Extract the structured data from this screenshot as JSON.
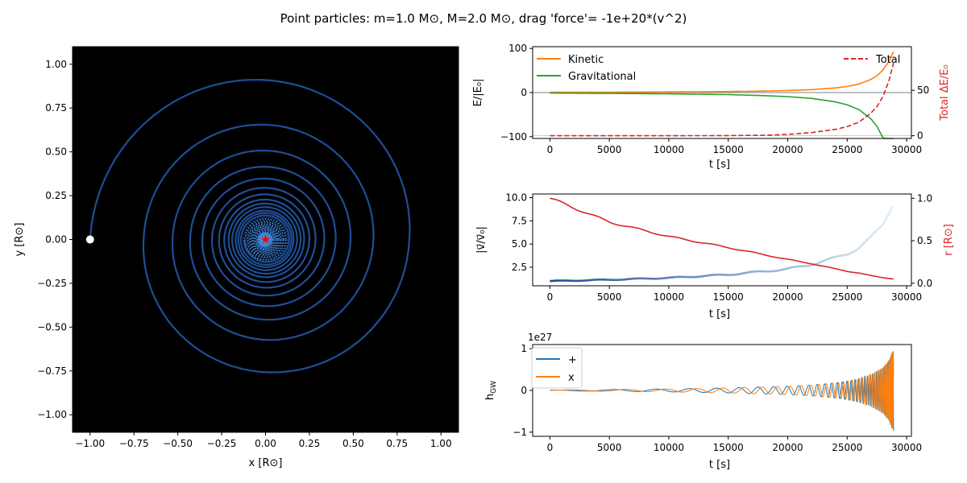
{
  "suptitle": "Point particles: m=1.0 M⊙, M=2.0 M⊙, drag 'force'= -1e+20*(v^2)",
  "colors": {
    "orbit": "#1f4e96",
    "orbit_inner": "#4a90d9",
    "kinetic": "#ff7f0e",
    "gravitational": "#2ca02c",
    "total": "#d62728",
    "radius": "#d62728",
    "plus": "#1f77b4",
    "cross": "#ff7f0e",
    "star": "#ff0000",
    "particle": "#ffffff",
    "background": "#000000"
  },
  "chart_data": [
    {
      "id": "orbit",
      "type": "line",
      "xlabel": "x [R⊙]",
      "ylabel": "y [R⊙]",
      "xlim": [
        -1.1,
        1.1
      ],
      "ylim": [
        -1.1,
        1.1
      ],
      "xticks": [
        "−1.00",
        "−0.75",
        "−0.50",
        "−0.25",
        "0.00",
        "0.25",
        "0.50",
        "0.75",
        "1.00"
      ],
      "yticks": [
        "−1.00",
        "−0.75",
        "−0.50",
        "−0.25",
        "0.00",
        "0.25",
        "0.50",
        "0.75",
        "1.00"
      ],
      "xtick_values": [
        -1,
        -0.75,
        -0.5,
        -0.25,
        0,
        0.25,
        0.5,
        0.75,
        1
      ],
      "ytick_values": [
        -1,
        -0.75,
        -0.5,
        -0.25,
        0,
        0.25,
        0.5,
        0.75,
        1
      ],
      "spiral_left_edges": [
        -1.0,
        -0.695,
        -0.53,
        -0.43,
        -0.36,
        -0.305,
        -0.265,
        -0.235,
        -0.21,
        -0.19,
        -0.17,
        -0.155,
        -0.14
      ],
      "spiral_right_edges": [
        0.82,
        0.615,
        0.485,
        0.4,
        0.335,
        0.285,
        0.25,
        0.22,
        0.2,
        0.18,
        0.16,
        0.148,
        0.135
      ],
      "particle_start": [
        -1.0,
        0.0
      ],
      "central_mass": [
        0.0,
        0.0
      ]
    },
    {
      "id": "energy",
      "type": "line",
      "xlabel": "t [s]",
      "ylabel": "E/|E₀|",
      "ylabel_right": "Total ΔE/E₀",
      "xlim": [
        -1450,
        30400
      ],
      "ylim": [
        -104,
        104
      ],
      "ylim_right": [
        -3,
        98
      ],
      "xticks": [
        "0",
        "5000",
        "10000",
        "15000",
        "20000",
        "25000",
        "30000"
      ],
      "xtick_values": [
        0,
        5000,
        10000,
        15000,
        20000,
        25000,
        30000
      ],
      "yticks": [
        "−100",
        "0",
        "100"
      ],
      "ytick_values": [
        -100,
        0,
        100
      ],
      "yticks_right": [
        "0",
        "50"
      ],
      "ytick_values_right": [
        0,
        50
      ],
      "legend": [
        "Kinetic",
        "Gravitational"
      ],
      "legend_right": [
        "Total"
      ],
      "x": [
        0,
        5000,
        10000,
        15000,
        18000,
        20000,
        22000,
        24000,
        25000,
        26000,
        27000,
        27500,
        28000,
        28500,
        28900
      ],
      "series": [
        {
          "name": "Kinetic",
          "axis": "left",
          "values": [
            0.6,
            0.9,
            1.4,
            2.3,
            3.4,
            4.6,
            6.6,
            10.5,
            13.9,
            19.4,
            29.8,
            38.2,
            51,
            70,
            93
          ]
        },
        {
          "name": "Gravitational",
          "axis": "left",
          "values": [
            -1.1,
            -1.8,
            -2.8,
            -4.6,
            -6.9,
            -9.2,
            -13.2,
            -21,
            -27.8,
            -38.8,
            -59.6,
            -76.5,
            -102,
            -140,
            -186
          ]
        },
        {
          "name": "Total",
          "axis": "right",
          "values": [
            0,
            0,
            0,
            0.2,
            0.5,
            1.5,
            3.5,
            7,
            10,
            15,
            25,
            32,
            43,
            60,
            80
          ]
        }
      ]
    },
    {
      "id": "speed",
      "type": "line",
      "xlabel": "t [s]",
      "ylabel": "|v⃗/v⃗₀|",
      "ylabel_right": "r [R⊙]",
      "xlim": [
        -1450,
        30400
      ],
      "ylim": [
        0.5,
        10.4
      ],
      "ylim_right": [
        -0.03,
        1.05
      ],
      "xticks": [
        "0",
        "5000",
        "10000",
        "15000",
        "20000",
        "25000",
        "30000"
      ],
      "xtick_values": [
        0,
        5000,
        10000,
        15000,
        20000,
        25000,
        30000
      ],
      "yticks": [
        "2.5",
        "5.0",
        "7.5",
        "10.0"
      ],
      "ytick_values": [
        2.5,
        5,
        7.5,
        10
      ],
      "yticks_right": [
        "0.0",
        "0.5",
        "1.0"
      ],
      "ytick_values_right": [
        0,
        0.5,
        1
      ],
      "x": [
        0,
        5000,
        10000,
        15000,
        20000,
        22000,
        24000,
        25000,
        26000,
        27000,
        28000,
        28900
      ],
      "series": [
        {
          "name": "speed",
          "axis": "left",
          "values": [
            1.0,
            1.15,
            1.35,
            1.7,
            2.3,
            2.8,
            3.5,
            4.0,
            4.6,
            5.6,
            7.2,
            9.7
          ]
        },
        {
          "name": "radius",
          "axis": "right",
          "values": [
            1.0,
            0.72,
            0.55,
            0.42,
            0.28,
            0.23,
            0.17,
            0.14,
            0.12,
            0.09,
            0.065,
            0.05
          ]
        }
      ]
    },
    {
      "id": "gw",
      "type": "line",
      "xlabel": "t [s]",
      "ylabel": "h_GW",
      "ylabel_text": "h",
      "ylabel_sub": "GW",
      "offset_label": "1e27",
      "xlim": [
        -1450,
        30400
      ],
      "ylim": [
        -1.1,
        1.1
      ],
      "xticks": [
        "0",
        "5000",
        "10000",
        "15000",
        "20000",
        "25000",
        "30000"
      ],
      "xtick_values": [
        0,
        5000,
        10000,
        15000,
        20000,
        25000,
        30000
      ],
      "yticks": [
        "−1",
        "0",
        "1"
      ],
      "ytick_values": [
        -1,
        0,
        1
      ],
      "legend": [
        "+",
        "x"
      ],
      "envelope_t": [
        0,
        5000,
        10000,
        15000,
        20000,
        22000,
        24000,
        25000,
        26000,
        27000,
        28000,
        28500,
        28900
      ],
      "envelope_amp": [
        0.01,
        0.02,
        0.035,
        0.06,
        0.1,
        0.13,
        0.18,
        0.22,
        0.28,
        0.38,
        0.55,
        0.72,
        1.02
      ]
    }
  ]
}
